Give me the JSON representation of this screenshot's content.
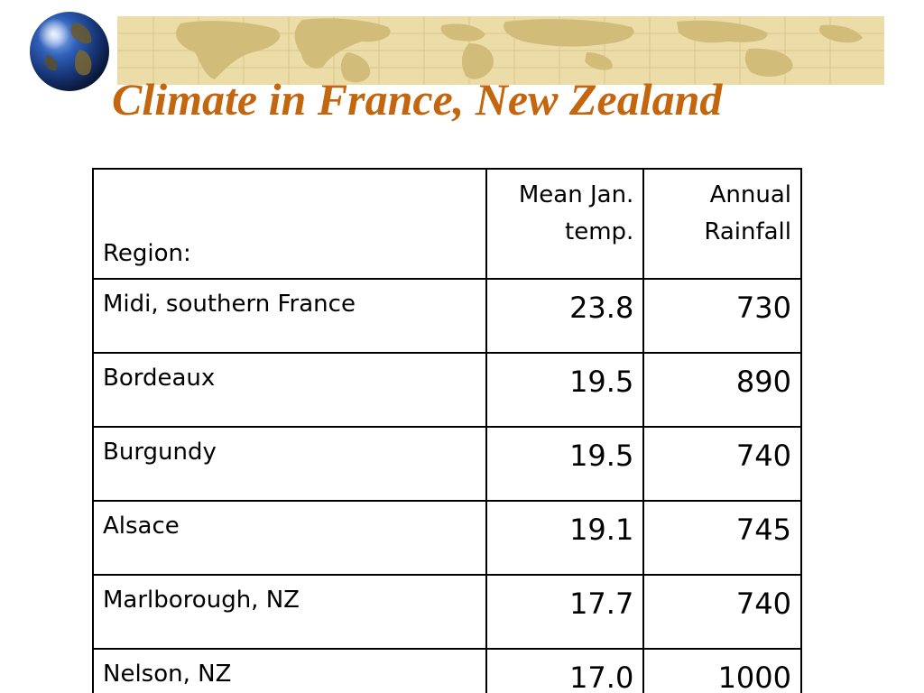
{
  "slide": {
    "title": "Climate in France, New Zealand"
  },
  "table": {
    "headers": {
      "region": "Region:",
      "temp_line1": "Mean Jan.",
      "temp_line2": "temp.",
      "rain_line1": "Annual",
      "rain_line2": "Rainfall"
    },
    "rows": [
      {
        "region": "Midi, southern France",
        "temp": "23.8",
        "rainfall": "730"
      },
      {
        "region": "Bordeaux",
        "temp": "19.5",
        "rainfall": "890"
      },
      {
        "region": "Burgundy",
        "temp": "19.5",
        "rainfall": "740"
      },
      {
        "region": "Alsace",
        "temp": "19.1",
        "rainfall": "745"
      },
      {
        "region": "Marlborough, NZ",
        "temp": "17.7",
        "rainfall": "740"
      },
      {
        "region": "Nelson, NZ",
        "temp": "17.0",
        "rainfall": "1000"
      }
    ]
  },
  "decor": {
    "globe_icon": "globe-icon",
    "banner": "world-map-banner",
    "title_color": "#c4660e",
    "banner_color": "#ecdca8"
  }
}
